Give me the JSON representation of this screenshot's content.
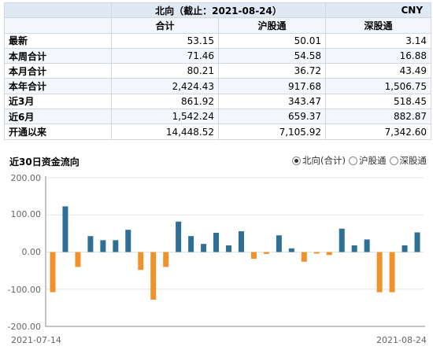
{
  "table": {
    "title": "北向（截止：2021-08-24）",
    "currency": "CNY",
    "headers": [
      "合计",
      "沪股通",
      "深股通"
    ],
    "rows": [
      {
        "label": "最新",
        "values": [
          "53.15",
          "50.01",
          "3.14"
        ]
      },
      {
        "label": "本周合计",
        "values": [
          "71.46",
          "54.58",
          "16.88"
        ]
      },
      {
        "label": "本月合计",
        "values": [
          "80.21",
          "36.72",
          "43.49"
        ]
      },
      {
        "label": "本年合计",
        "values": [
          "2,424.43",
          "917.68",
          "1,506.75"
        ]
      },
      {
        "label": "近3月",
        "values": [
          "861.92",
          "343.47",
          "518.45"
        ]
      },
      {
        "label": "近6月",
        "values": [
          "1,542.24",
          "659.37",
          "882.87"
        ]
      },
      {
        "label": "开通以来",
        "values": [
          "14,448.52",
          "7,105.92",
          "7,342.60"
        ]
      }
    ]
  },
  "chart_title": "近30日资金流向",
  "legend": {
    "options": [
      {
        "label": "北向(合计)",
        "selected": true
      },
      {
        "label": "沪股通",
        "selected": false
      },
      {
        "label": "深股通",
        "selected": false
      }
    ]
  },
  "colors": {
    "positive": "#2e6f96",
    "negative": "#f0922a"
  },
  "chart_data": {
    "type": "bar",
    "ylim": [
      -200,
      200
    ],
    "y_ticks": [
      "200.00",
      "100.00",
      "0.00",
      "-100.00",
      "-200.00"
    ],
    "x_tick_labels": [
      "2021-07-14",
      "2021-08-24"
    ],
    "values": [
      -108,
      123,
      -40,
      43,
      32,
      32,
      60,
      -48,
      -128,
      -40,
      82,
      43,
      22,
      52,
      18,
      56,
      -18,
      -5,
      45,
      10,
      -26,
      -4,
      -8,
      63,
      18,
      34,
      -108,
      -108,
      18,
      53
    ]
  }
}
